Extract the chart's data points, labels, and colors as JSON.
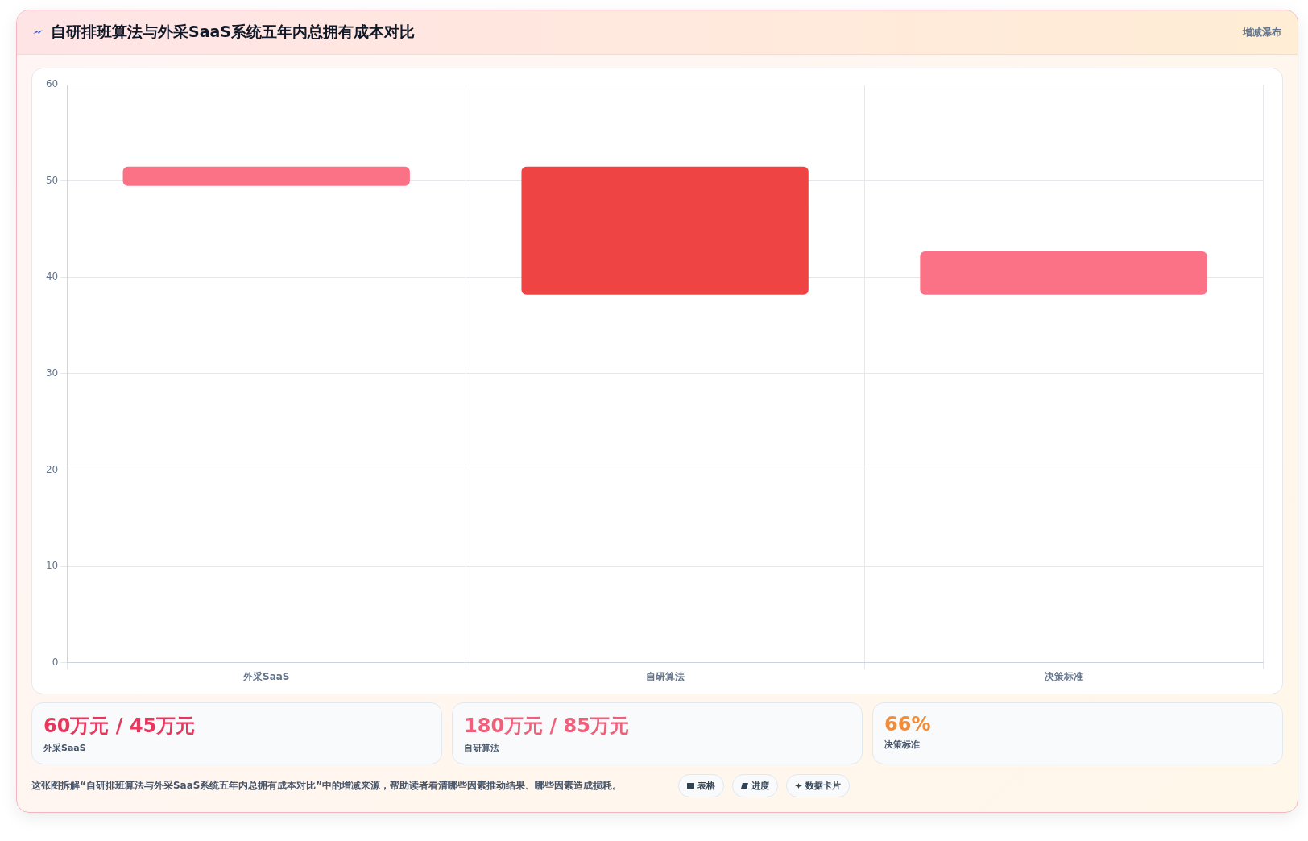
{
  "chart_data": {
    "type": "bar",
    "title": "自研排班算法与外采SaaS系统五年内总拥有成本对比",
    "subtitle": "增减瀑布",
    "categories": [
      "外采SaaS",
      "自研算法",
      "决策标准"
    ],
    "values": [
      2,
      13.3,
      4.5
    ],
    "base": [
      49.5,
      38.2,
      38.2
    ],
    "colors": [
      "#fb7185",
      "#ef4444",
      "#fb7185"
    ],
    "ylim": [
      0,
      60
    ],
    "yticks": [
      0,
      10,
      20,
      30,
      40,
      50,
      60
    ],
    "grid": true,
    "legend": false,
    "annotations": [
      "60万元 / 45万元",
      "外采SaaS",
      "180万元 / 85万元",
      "自研算法",
      "66%",
      "决策标准",
      "这张图拆解“自研排班算法与外采SaaS系统五年内总拥有成本对比”中的增减来源，帮助读者看清哪些因素推动结果、哪些因素造成损耗。",
      "表格",
      "进度",
      "数据卡片"
    ]
  }
}
